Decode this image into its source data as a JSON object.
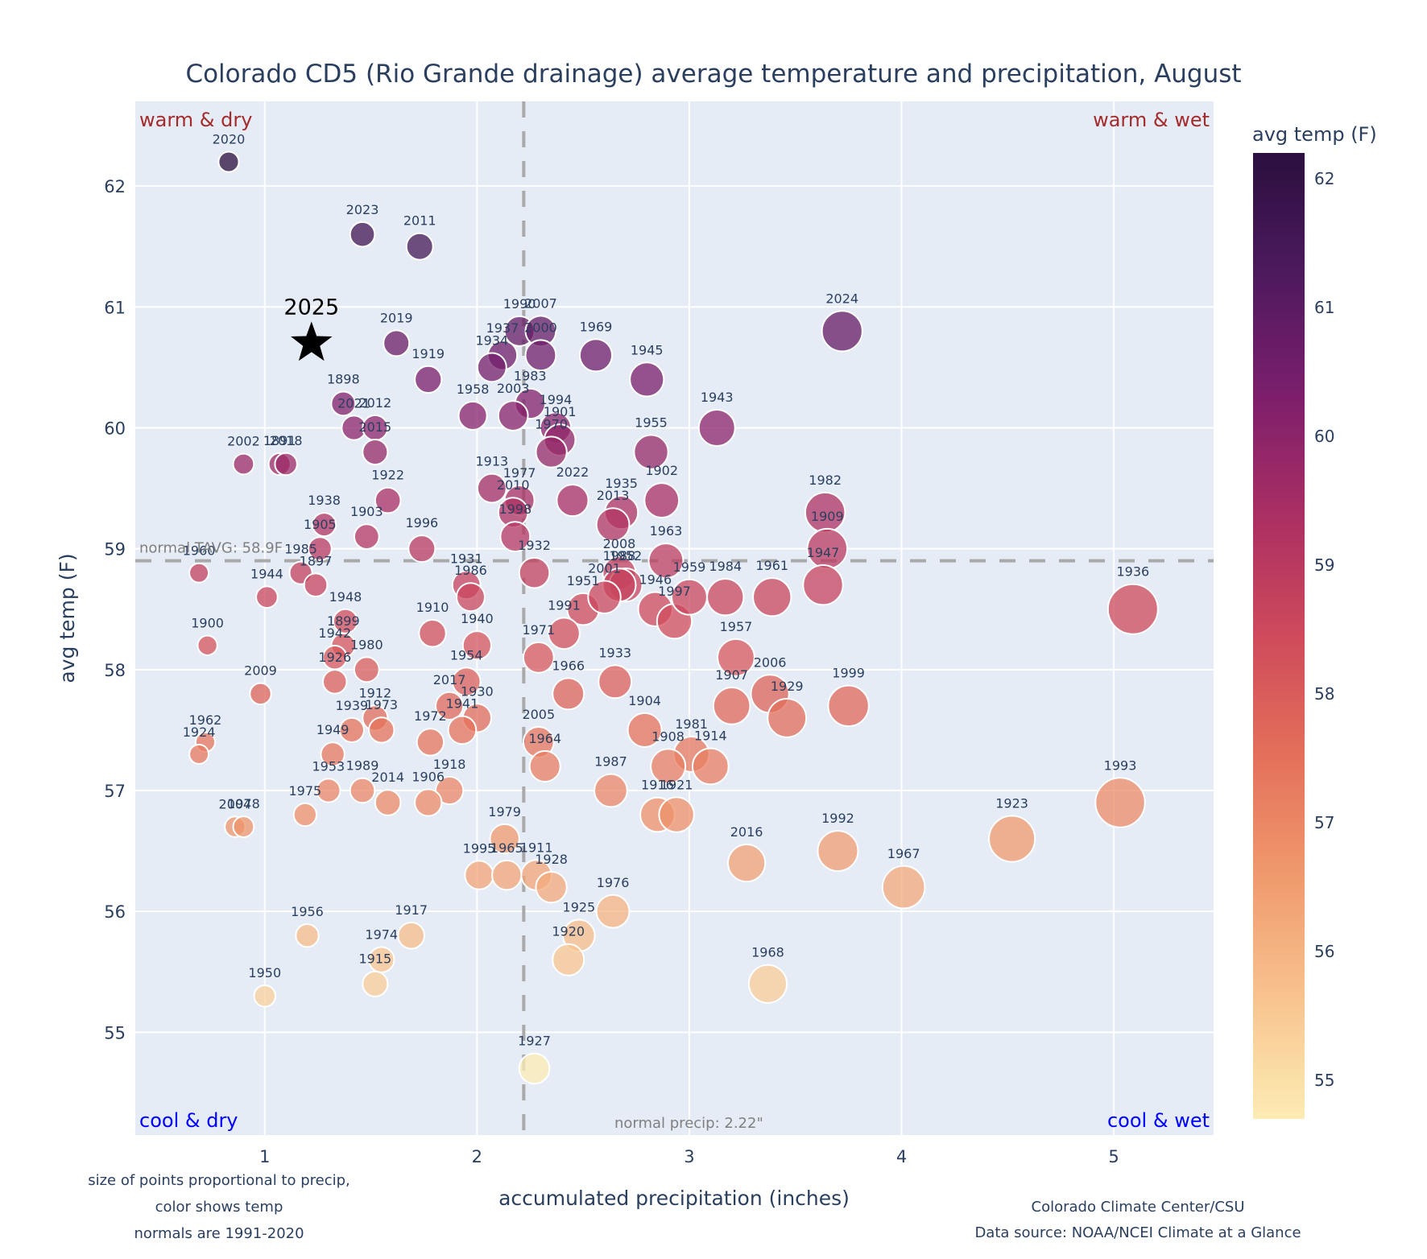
{
  "chart_data": {
    "type": "scatter",
    "title": "Colorado CD5 (Rio Grande drainage) average temperature and precipitation, August",
    "xlabel": "accumulated precipitation (inches)",
    "ylabel": "avg temp (F)",
    "xlim": [
      0.39,
      5.47
    ],
    "ylim": [
      54.15,
      62.7
    ],
    "xticks": [
      1,
      2,
      3,
      4,
      5
    ],
    "yticks": [
      55,
      56,
      57,
      58,
      59,
      60,
      61,
      62
    ],
    "grid": true,
    "colorscale_name": "magma-like (dark purple = warm, pale yellow = cool)",
    "colorbar": {
      "title": "avg temp (F)",
      "range": [
        54.7,
        62.2
      ],
      "ticks": [
        55,
        56,
        57,
        58,
        59,
        60,
        61,
        62
      ],
      "colors": [
        "#fcecb3",
        "#f8c38f",
        "#f09a6e",
        "#e4705a",
        "#cf4a5b",
        "#aa2f63",
        "#7c1e6c",
        "#4d1a5e",
        "#2b0f3f"
      ]
    },
    "normal_temp": 58.9,
    "normal_precip": 2.22,
    "normal_temp_label": "normal TAVG: 58.9F",
    "normal_precip_label": "normal precip: 2.22\"",
    "quadrant_labels": {
      "top_left": "warm & dry",
      "top_right": "warm & wet",
      "bottom_left": "cool & dry",
      "bottom_right": "cool & wet"
    },
    "highlight": {
      "label": "2025",
      "precip": 1.22,
      "temp": 60.7,
      "marker": "star"
    },
    "points": [
      {
        "year": "2020",
        "precip": 0.83,
        "temp": 62.2
      },
      {
        "year": "2023",
        "precip": 1.46,
        "temp": 61.6
      },
      {
        "year": "2011",
        "precip": 1.73,
        "temp": 61.5
      },
      {
        "year": "2024",
        "precip": 3.72,
        "temp": 60.8
      },
      {
        "year": "2019",
        "precip": 1.62,
        "temp": 60.7
      },
      {
        "year": "1919",
        "precip": 1.77,
        "temp": 60.4
      },
      {
        "year": "1969",
        "precip": 2.56,
        "temp": 60.6
      },
      {
        "year": "1945",
        "precip": 2.8,
        "temp": 60.4
      },
      {
        "year": "1990",
        "precip": 2.2,
        "temp": 60.8
      },
      {
        "year": "2007",
        "precip": 2.3,
        "temp": 60.8
      },
      {
        "year": "1937",
        "precip": 2.12,
        "temp": 60.6
      },
      {
        "year": "2000",
        "precip": 2.3,
        "temp": 60.6
      },
      {
        "year": "1934",
        "precip": 2.07,
        "temp": 60.5
      },
      {
        "year": "1983",
        "precip": 2.25,
        "temp": 60.2
      },
      {
        "year": "1898",
        "precip": 1.37,
        "temp": 60.2
      },
      {
        "year": "2021",
        "precip": 1.42,
        "temp": 60.0
      },
      {
        "year": "2012",
        "precip": 1.52,
        "temp": 60.0
      },
      {
        "year": "2015",
        "precip": 1.52,
        "temp": 59.8
      },
      {
        "year": "1958",
        "precip": 1.98,
        "temp": 60.1
      },
      {
        "year": "2003",
        "precip": 2.17,
        "temp": 60.1
      },
      {
        "year": "1994",
        "precip": 2.37,
        "temp": 60.0
      },
      {
        "year": "1901",
        "precip": 2.39,
        "temp": 59.9
      },
      {
        "year": "1970",
        "precip": 2.35,
        "temp": 59.8
      },
      {
        "year": "1943",
        "precip": 3.13,
        "temp": 60.0
      },
      {
        "year": "1955",
        "precip": 2.82,
        "temp": 59.8
      },
      {
        "year": "2002",
        "precip": 0.9,
        "temp": 59.7
      },
      {
        "year": "1891",
        "precip": 1.07,
        "temp": 59.7
      },
      {
        "year": "2018",
        "precip": 1.1,
        "temp": 59.7
      },
      {
        "year": "1922",
        "precip": 1.58,
        "temp": 59.4
      },
      {
        "year": "1913",
        "precip": 2.07,
        "temp": 59.5
      },
      {
        "year": "1977",
        "precip": 2.2,
        "temp": 59.4
      },
      {
        "year": "2010",
        "precip": 2.17,
        "temp": 59.3
      },
      {
        "year": "2022",
        "precip": 2.45,
        "temp": 59.4
      },
      {
        "year": "1902",
        "precip": 2.87,
        "temp": 59.4
      },
      {
        "year": "1935",
        "precip": 2.68,
        "temp": 59.3
      },
      {
        "year": "2013",
        "precip": 2.64,
        "temp": 59.2
      },
      {
        "year": "1982",
        "precip": 3.64,
        "temp": 59.3
      },
      {
        "year": "1909",
        "precip": 3.65,
        "temp": 59.0
      },
      {
        "year": "1938",
        "precip": 1.28,
        "temp": 59.2
      },
      {
        "year": "1905",
        "precip": 1.26,
        "temp": 59.0
      },
      {
        "year": "1903",
        "precip": 1.48,
        "temp": 59.1
      },
      {
        "year": "1996",
        "precip": 1.74,
        "temp": 59.0
      },
      {
        "year": "1998",
        "precip": 2.18,
        "temp": 59.1
      },
      {
        "year": "1932",
        "precip": 2.27,
        "temp": 58.8
      },
      {
        "year": "2008",
        "precip": 2.67,
        "temp": 58.8
      },
      {
        "year": "1952",
        "precip": 2.7,
        "temp": 58.7
      },
      {
        "year": "1963",
        "precip": 2.89,
        "temp": 58.9
      },
      {
        "year": "1947",
        "precip": 3.63,
        "temp": 58.7
      },
      {
        "year": "1985",
        "precip": 1.17,
        "temp": 58.8
      },
      {
        "year": "1897",
        "precip": 1.24,
        "temp": 58.7
      },
      {
        "year": "1960",
        "precip": 0.69,
        "temp": 58.8
      },
      {
        "year": "1944",
        "precip": 1.01,
        "temp": 58.6
      },
      {
        "year": "1931",
        "precip": 1.95,
        "temp": 58.7
      },
      {
        "year": "1986",
        "precip": 1.97,
        "temp": 58.6
      },
      {
        "year": "1988",
        "precip": 2.67,
        "temp": 58.7
      },
      {
        "year": "1951",
        "precip": 2.5,
        "temp": 58.5
      },
      {
        "year": "2001",
        "precip": 2.6,
        "temp": 58.6
      },
      {
        "year": "1946",
        "precip": 2.84,
        "temp": 58.5
      },
      {
        "year": "1997",
        "precip": 2.93,
        "temp": 58.4
      },
      {
        "year": "1959",
        "precip": 3.0,
        "temp": 58.6
      },
      {
        "year": "1984",
        "precip": 3.17,
        "temp": 58.6
      },
      {
        "year": "1961",
        "precip": 3.39,
        "temp": 58.6
      },
      {
        "year": "1936",
        "precip": 5.09,
        "temp": 58.5
      },
      {
        "year": "1948",
        "precip": 1.38,
        "temp": 58.4
      },
      {
        "year": "1899",
        "precip": 1.37,
        "temp": 58.2
      },
      {
        "year": "1910",
        "precip": 1.79,
        "temp": 58.3
      },
      {
        "year": "1991",
        "precip": 2.41,
        "temp": 58.3
      },
      {
        "year": "1940",
        "precip": 2.0,
        "temp": 58.2
      },
      {
        "year": "1900",
        "precip": 0.73,
        "temp": 58.2
      },
      {
        "year": "1942",
        "precip": 1.33,
        "temp": 58.1
      },
      {
        "year": "1971",
        "precip": 2.29,
        "temp": 58.1
      },
      {
        "year": "1980",
        "precip": 1.48,
        "temp": 58.0
      },
      {
        "year": "1926",
        "precip": 1.33,
        "temp": 57.9
      },
      {
        "year": "1954",
        "precip": 1.95,
        "temp": 57.9
      },
      {
        "year": "1933",
        "precip": 2.65,
        "temp": 57.9
      },
      {
        "year": "1957",
        "precip": 3.22,
        "temp": 58.1
      },
      {
        "year": "2009",
        "precip": 0.98,
        "temp": 57.8
      },
      {
        "year": "1966",
        "precip": 2.43,
        "temp": 57.8
      },
      {
        "year": "2006",
        "precip": 3.38,
        "temp": 57.8
      },
      {
        "year": "1907",
        "precip": 3.2,
        "temp": 57.7
      },
      {
        "year": "1999",
        "precip": 3.75,
        "temp": 57.7
      },
      {
        "year": "2017",
        "precip": 1.87,
        "temp": 57.7
      },
      {
        "year": "1930",
        "precip": 2.0,
        "temp": 57.6
      },
      {
        "year": "1912",
        "precip": 1.52,
        "temp": 57.6
      },
      {
        "year": "1939",
        "precip": 1.41,
        "temp": 57.5
      },
      {
        "year": "1973",
        "precip": 1.55,
        "temp": 57.5
      },
      {
        "year": "1941",
        "precip": 1.93,
        "temp": 57.5
      },
      {
        "year": "1904",
        "precip": 2.79,
        "temp": 57.5
      },
      {
        "year": "1929",
        "precip": 3.46,
        "temp": 57.6
      },
      {
        "year": "1962",
        "precip": 0.72,
        "temp": 57.4
      },
      {
        "year": "1924",
        "precip": 0.69,
        "temp": 57.3
      },
      {
        "year": "1972",
        "precip": 1.78,
        "temp": 57.4
      },
      {
        "year": "2005",
        "precip": 2.29,
        "temp": 57.4
      },
      {
        "year": "1949",
        "precip": 1.32,
        "temp": 57.3
      },
      {
        "year": "1981",
        "precip": 3.01,
        "temp": 57.3
      },
      {
        "year": "1914",
        "precip": 3.1,
        "temp": 57.2
      },
      {
        "year": "1908",
        "precip": 2.9,
        "temp": 57.2
      },
      {
        "year": "1964",
        "precip": 2.32,
        "temp": 57.2
      },
      {
        "year": "1953",
        "precip": 1.3,
        "temp": 57.0
      },
      {
        "year": "1989",
        "precip": 1.46,
        "temp": 57.0
      },
      {
        "year": "1918",
        "precip": 1.87,
        "temp": 57.0
      },
      {
        "year": "1987",
        "precip": 2.63,
        "temp": 57.0
      },
      {
        "year": "2014",
        "precip": 1.58,
        "temp": 56.9
      },
      {
        "year": "1906",
        "precip": 1.77,
        "temp": 56.9
      },
      {
        "year": "1993",
        "precip": 5.03,
        "temp": 56.9
      },
      {
        "year": "1975",
        "precip": 1.19,
        "temp": 56.8
      },
      {
        "year": "1916",
        "precip": 2.85,
        "temp": 56.8
      },
      {
        "year": "1921",
        "precip": 2.94,
        "temp": 56.8
      },
      {
        "year": "2004",
        "precip": 0.86,
        "temp": 56.7
      },
      {
        "year": "1978",
        "precip": 0.9,
        "temp": 56.7
      },
      {
        "year": "1923",
        "precip": 4.52,
        "temp": 56.6
      },
      {
        "year": "1979",
        "precip": 2.13,
        "temp": 56.6
      },
      {
        "year": "1992",
        "precip": 3.7,
        "temp": 56.5
      },
      {
        "year": "2016",
        "precip": 3.27,
        "temp": 56.4
      },
      {
        "year": "1995",
        "precip": 2.01,
        "temp": 56.3
      },
      {
        "year": "1965",
        "precip": 2.14,
        "temp": 56.3
      },
      {
        "year": "1911",
        "precip": 2.28,
        "temp": 56.3
      },
      {
        "year": "1928",
        "precip": 2.35,
        "temp": 56.2
      },
      {
        "year": "1967",
        "precip": 4.01,
        "temp": 56.2
      },
      {
        "year": "1976",
        "precip": 2.64,
        "temp": 56.0
      },
      {
        "year": "1956",
        "precip": 1.2,
        "temp": 55.8
      },
      {
        "year": "1917",
        "precip": 1.69,
        "temp": 55.8
      },
      {
        "year": "1925",
        "precip": 2.48,
        "temp": 55.8
      },
      {
        "year": "1974",
        "precip": 1.55,
        "temp": 55.6
      },
      {
        "year": "1920",
        "precip": 2.43,
        "temp": 55.6
      },
      {
        "year": "1915",
        "precip": 1.52,
        "temp": 55.4
      },
      {
        "year": "1968",
        "precip": 3.37,
        "temp": 55.4
      },
      {
        "year": "1950",
        "precip": 1.0,
        "temp": 55.3
      },
      {
        "year": "1927",
        "precip": 2.27,
        "temp": 54.7
      }
    ]
  },
  "notes": {
    "left": [
      "size of points proportional to precip,",
      "color shows temp",
      "normals are 1991-2020"
    ],
    "right": [
      "Colorado Climate Center/CSU",
      "Data source: NOAA/NCEI Climate at a Glance"
    ]
  }
}
